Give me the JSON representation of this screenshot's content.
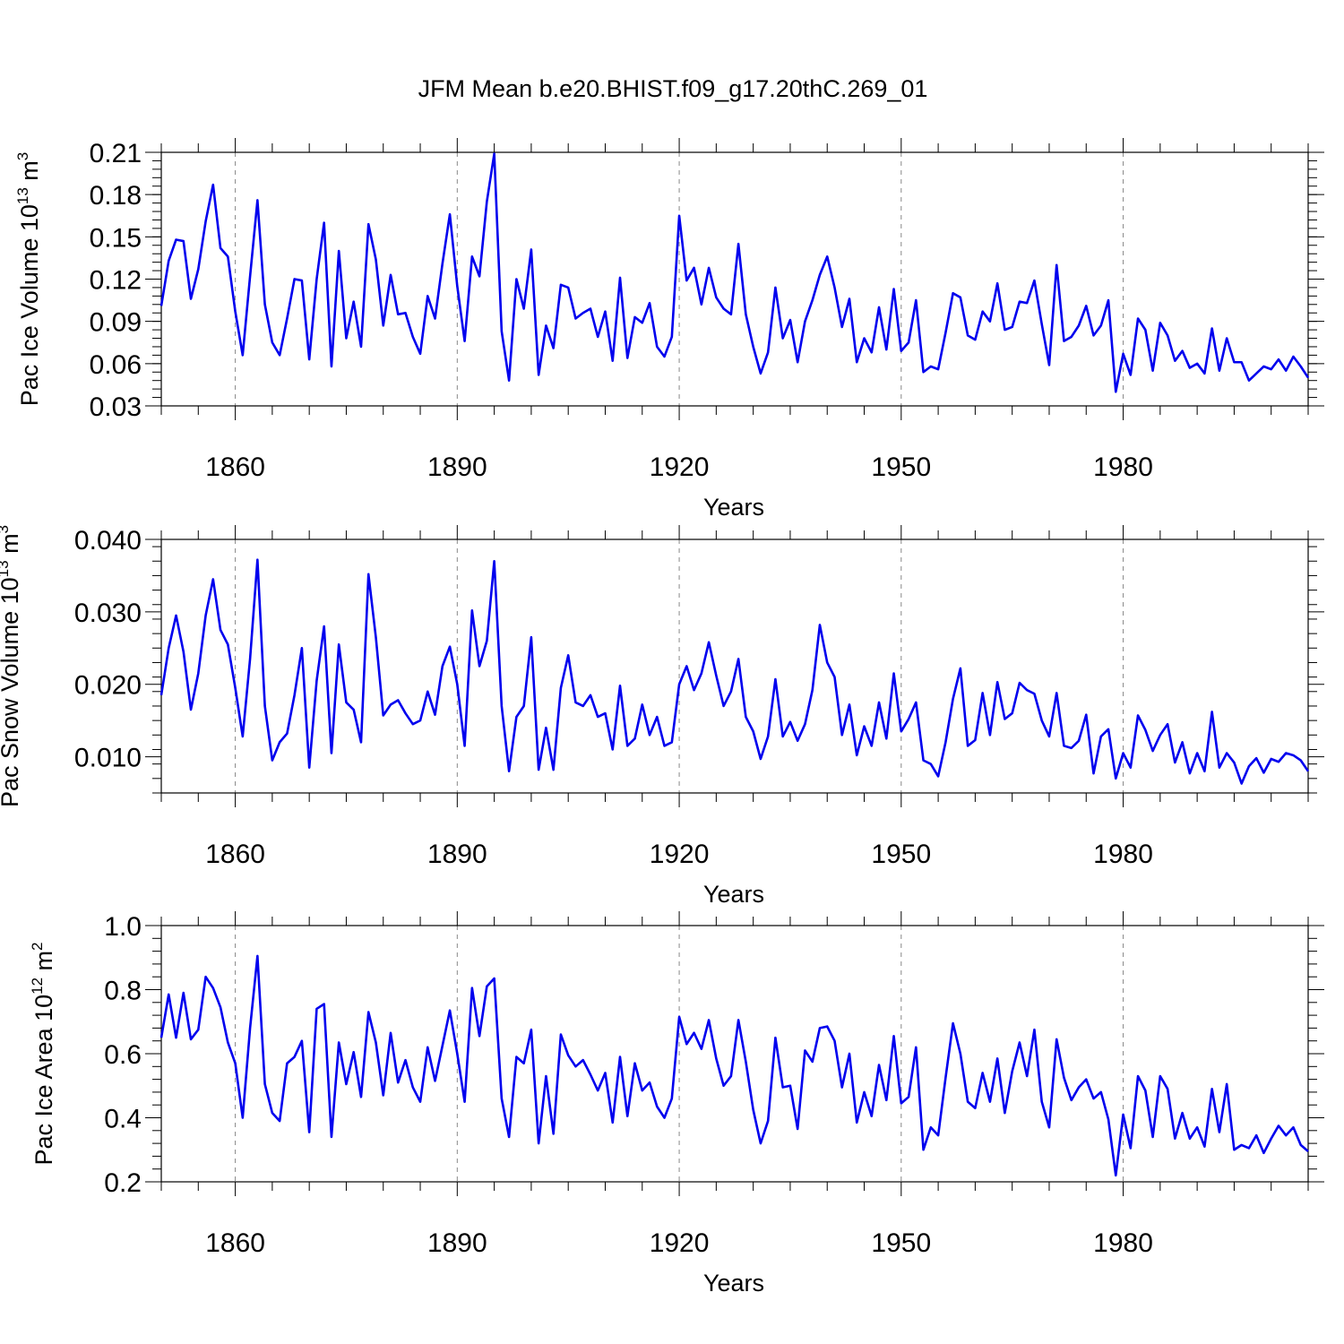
{
  "title": "JFM Mean b.e20.BHIST.f09_g17.20thC.269_01",
  "colors": {
    "line": "#0000ee",
    "grid": "#888888",
    "axes": "#000000"
  },
  "chart_data": [
    {
      "type": "line",
      "ylabel_text": "Pac Ice Volume 10",
      "ylabel_exp": "13",
      "ylabel_unit": " m",
      "ylabel_unit_exp": "3",
      "xlabel": "Years",
      "xlim": [
        1850,
        2005
      ],
      "ylim": [
        0.03,
        0.21
      ],
      "x_ticks": [
        "1860",
        "1890",
        "1920",
        "1950",
        "1980"
      ],
      "y_ticks": [
        "0.03",
        "0.06",
        "0.09",
        "0.12",
        "0.15",
        "0.18",
        "0.21"
      ],
      "y_tick_values": [
        0.03,
        0.06,
        0.09,
        0.12,
        0.15,
        0.18,
        0.21
      ],
      "x_start": 1850,
      "series": [
        {
          "name": "Pac Ice Volume",
          "values": [
            0.101,
            0.133,
            0.148,
            0.147,
            0.106,
            0.127,
            0.161,
            0.187,
            0.142,
            0.136,
            0.097,
            0.066,
            0.122,
            0.176,
            0.102,
            0.075,
            0.066,
            0.092,
            0.12,
            0.119,
            0.063,
            0.12,
            0.16,
            0.058,
            0.14,
            0.078,
            0.104,
            0.072,
            0.159,
            0.134,
            0.087,
            0.123,
            0.095,
            0.096,
            0.079,
            0.067,
            0.108,
            0.092,
            0.131,
            0.166,
            0.115,
            0.076,
            0.136,
            0.122,
            0.175,
            0.209,
            0.083,
            0.048,
            0.12,
            0.099,
            0.141,
            0.052,
            0.087,
            0.071,
            0.116,
            0.114,
            0.092,
            0.096,
            0.099,
            0.079,
            0.097,
            0.062,
            0.121,
            0.064,
            0.093,
            0.089,
            0.103,
            0.072,
            0.065,
            0.079,
            0.165,
            0.119,
            0.128,
            0.102,
            0.128,
            0.107,
            0.099,
            0.095,
            0.145,
            0.095,
            0.072,
            0.053,
            0.068,
            0.114,
            0.078,
            0.091,
            0.061,
            0.09,
            0.105,
            0.123,
            0.136,
            0.114,
            0.086,
            0.106,
            0.061,
            0.078,
            0.068,
            0.1,
            0.07,
            0.113,
            0.069,
            0.075,
            0.105,
            0.054,
            0.058,
            0.056,
            0.082,
            0.11,
            0.107,
            0.08,
            0.077,
            0.097,
            0.09,
            0.117,
            0.084,
            0.086,
            0.104,
            0.103,
            0.119,
            0.088,
            0.059,
            0.13,
            0.076,
            0.079,
            0.087,
            0.101,
            0.08,
            0.087,
            0.105,
            0.04,
            0.067,
            0.052,
            0.092,
            0.084,
            0.055,
            0.089,
            0.08,
            0.062,
            0.069,
            0.057,
            0.06,
            0.053,
            0.085,
            0.055,
            0.078,
            0.061,
            0.061,
            0.048,
            0.053,
            0.058,
            0.056,
            0.063,
            0.055,
            0.065,
            0.058,
            0.05
          ]
        }
      ]
    },
    {
      "type": "line",
      "ylabel_text": "Pac Snow Volume 10",
      "ylabel_exp": "13",
      "ylabel_unit": " m",
      "ylabel_unit_exp": "3",
      "xlabel": "Years",
      "xlim": [
        1850,
        2005
      ],
      "ylim": [
        0.005,
        0.04
      ],
      "x_ticks": [
        "1860",
        "1890",
        "1920",
        "1950",
        "1980"
      ],
      "y_ticks": [
        "0.010",
        "0.020",
        "0.030",
        "0.040"
      ],
      "y_tick_values": [
        0.01,
        0.02,
        0.03,
        0.04
      ],
      "x_start": 1850,
      "series": [
        {
          "name": "Pac Snow Volume",
          "values": [
            0.0185,
            0.025,
            0.0295,
            0.0245,
            0.0165,
            0.0215,
            0.0295,
            0.0345,
            0.0275,
            0.0255,
            0.0195,
            0.0128,
            0.0235,
            0.0372,
            0.017,
            0.0095,
            0.012,
            0.0132,
            0.0185,
            0.025,
            0.0085,
            0.0205,
            0.028,
            0.0105,
            0.0255,
            0.0175,
            0.0165,
            0.012,
            0.0352,
            0.0265,
            0.0157,
            0.0172,
            0.0178,
            0.016,
            0.0145,
            0.015,
            0.019,
            0.0158,
            0.0225,
            0.0252,
            0.02,
            0.0115,
            0.0302,
            0.0225,
            0.026,
            0.037,
            0.017,
            0.008,
            0.0155,
            0.017,
            0.0265,
            0.0082,
            0.014,
            0.0082,
            0.0195,
            0.024,
            0.0175,
            0.017,
            0.0185,
            0.0155,
            0.016,
            0.011,
            0.0198,
            0.0115,
            0.0125,
            0.0172,
            0.013,
            0.0155,
            0.0115,
            0.012,
            0.02,
            0.0225,
            0.0192,
            0.0215,
            0.0258,
            0.0212,
            0.017,
            0.019,
            0.0235,
            0.0155,
            0.0135,
            0.0097,
            0.0128,
            0.0207,
            0.0128,
            0.0148,
            0.0122,
            0.0145,
            0.0192,
            0.0282,
            0.023,
            0.021,
            0.013,
            0.0172,
            0.0102,
            0.0142,
            0.0115,
            0.0175,
            0.0125,
            0.0215,
            0.0135,
            0.0152,
            0.0175,
            0.0095,
            0.009,
            0.0073,
            0.012,
            0.018,
            0.0222,
            0.0115,
            0.0123,
            0.0188,
            0.013,
            0.0203,
            0.0152,
            0.016,
            0.0202,
            0.0192,
            0.0187,
            0.015,
            0.0128,
            0.0188,
            0.0115,
            0.0112,
            0.0122,
            0.0158,
            0.0077,
            0.0128,
            0.0138,
            0.007,
            0.0105,
            0.0085,
            0.0157,
            0.0137,
            0.0108,
            0.013,
            0.0145,
            0.0092,
            0.012,
            0.0077,
            0.0105,
            0.008,
            0.0162,
            0.0085,
            0.0105,
            0.0092,
            0.0063,
            0.0087,
            0.0098,
            0.0078,
            0.0097,
            0.0093,
            0.0105,
            0.0102,
            0.0095,
            0.008
          ]
        }
      ]
    },
    {
      "type": "line",
      "ylabel_text": "Pac Ice Area 10",
      "ylabel_exp": "12",
      "ylabel_unit": " m",
      "ylabel_unit_exp": "2",
      "xlabel": "Years",
      "xlim": [
        1850,
        2005
      ],
      "ylim": [
        0.2,
        1.0
      ],
      "x_ticks": [
        "1860",
        "1890",
        "1920",
        "1950",
        "1980"
      ],
      "y_ticks": [
        "0.2",
        "0.4",
        "0.6",
        "0.8",
        "1.0"
      ],
      "y_tick_values": [
        0.2,
        0.4,
        0.6,
        0.8,
        1.0
      ],
      "x_start": 1850,
      "series": [
        {
          "name": "Pac Ice Area",
          "values": [
            0.65,
            0.785,
            0.65,
            0.79,
            0.645,
            0.675,
            0.84,
            0.805,
            0.745,
            0.635,
            0.57,
            0.4,
            0.68,
            0.905,
            0.505,
            0.415,
            0.39,
            0.57,
            0.59,
            0.64,
            0.355,
            0.74,
            0.755,
            0.34,
            0.635,
            0.505,
            0.605,
            0.465,
            0.73,
            0.635,
            0.47,
            0.665,
            0.51,
            0.58,
            0.495,
            0.45,
            0.62,
            0.515,
            0.625,
            0.735,
            0.6,
            0.45,
            0.805,
            0.655,
            0.81,
            0.835,
            0.46,
            0.34,
            0.59,
            0.57,
            0.675,
            0.32,
            0.53,
            0.35,
            0.66,
            0.595,
            0.56,
            0.58,
            0.535,
            0.485,
            0.54,
            0.385,
            0.59,
            0.405,
            0.57,
            0.485,
            0.51,
            0.435,
            0.4,
            0.46,
            0.715,
            0.63,
            0.665,
            0.615,
            0.705,
            0.585,
            0.5,
            0.53,
            0.705,
            0.575,
            0.425,
            0.32,
            0.39,
            0.65,
            0.495,
            0.5,
            0.365,
            0.61,
            0.575,
            0.68,
            0.685,
            0.64,
            0.495,
            0.6,
            0.385,
            0.48,
            0.405,
            0.565,
            0.455,
            0.655,
            0.445,
            0.465,
            0.62,
            0.3,
            0.37,
            0.345,
            0.525,
            0.695,
            0.6,
            0.45,
            0.43,
            0.54,
            0.45,
            0.585,
            0.415,
            0.545,
            0.635,
            0.53,
            0.675,
            0.45,
            0.37,
            0.645,
            0.525,
            0.455,
            0.495,
            0.52,
            0.46,
            0.48,
            0.395,
            0.22,
            0.41,
            0.305,
            0.53,
            0.485,
            0.34,
            0.53,
            0.49,
            0.335,
            0.415,
            0.335,
            0.37,
            0.31,
            0.49,
            0.355,
            0.505,
            0.3,
            0.315,
            0.305,
            0.345,
            0.29,
            0.335,
            0.375,
            0.345,
            0.37,
            0.315,
            0.295
          ]
        }
      ]
    }
  ]
}
